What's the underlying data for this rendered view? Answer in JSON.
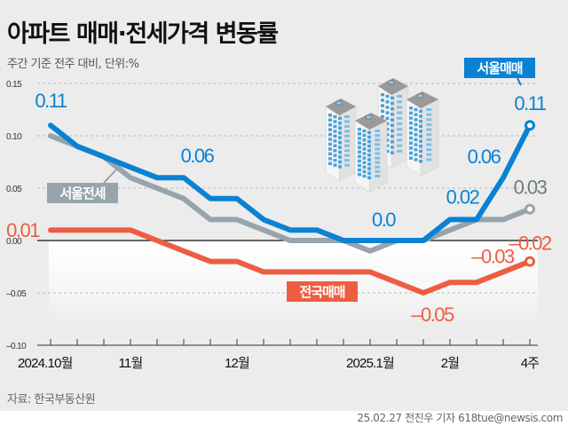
{
  "header": {
    "title": "아파트 매매·전세가격 변동률",
    "subtitle": "주간 기준 전주 대비, 단위:%"
  },
  "footer": {
    "source": "자료: 한국부동산원",
    "byline": "25.02.27 전진우 기자 618tue@newsis.com"
  },
  "colors": {
    "seoul_sale": "#0a82d4",
    "seoul_jeonse": "#97a4ab",
    "national_sale": "#ee5d42",
    "background": "#ececec"
  },
  "chart_data": {
    "type": "line",
    "title": "아파트 매매·전세가격 변동률",
    "subtitle": "주간 기준 전주 대비, 단위:%",
    "xlabel": "",
    "ylabel": "",
    "ylim": [
      -0.1,
      0.15
    ],
    "yticks": [
      0.15,
      0.1,
      0.05,
      0.0,
      -0.05,
      -0.1
    ],
    "ytick_labels": [
      "0.15",
      "0.10",
      "0.05",
      "0.00",
      "-0.05",
      "-0.10"
    ],
    "grid": "dashed horizontal",
    "x_count": 19,
    "x_tick_labels": [
      {
        "index": 0,
        "label": "2024.10월"
      },
      {
        "index": 3,
        "label": "11월"
      },
      {
        "index": 7,
        "label": "12월"
      },
      {
        "index": 12,
        "label": "2025.1월"
      },
      {
        "index": 15,
        "label": "2월"
      },
      {
        "index": 18,
        "label": "4주"
      }
    ],
    "series": [
      {
        "key": "seoul_jeonse",
        "name": "서울전세",
        "values": [
          0.1,
          0.09,
          0.08,
          0.06,
          0.05,
          0.04,
          0.02,
          0.02,
          0.01,
          0.0,
          0.0,
          0.0,
          -0.01,
          0.0,
          0.0,
          0.01,
          0.02,
          0.02,
          0.03
        ],
        "annotations": [
          {
            "index": 18,
            "text": "0.03"
          }
        ]
      },
      {
        "key": "national_sale",
        "name": "전국매매",
        "values": [
          0.01,
          0.01,
          0.01,
          0.01,
          0.0,
          -0.01,
          -0.02,
          -0.02,
          -0.03,
          -0.03,
          -0.03,
          -0.03,
          -0.03,
          -0.04,
          -0.05,
          -0.04,
          -0.04,
          -0.03,
          -0.02
        ],
        "annotations": [
          {
            "index": 0,
            "text": "0.01"
          },
          {
            "index": 14,
            "text": "-0.05"
          },
          {
            "index": 17,
            "text": "-0.03"
          },
          {
            "index": 18,
            "text": "-0.02"
          }
        ]
      },
      {
        "key": "seoul_sale",
        "name": "서울매매",
        "values": [
          0.11,
          0.09,
          0.08,
          0.07,
          0.06,
          0.06,
          0.04,
          0.04,
          0.02,
          0.01,
          0.01,
          0.0,
          0.0,
          0.0,
          0.0,
          0.02,
          0.02,
          0.06,
          0.11
        ],
        "annotations": [
          {
            "index": 0,
            "text": "0.11"
          },
          {
            "index": 5,
            "text": "0.06"
          },
          {
            "index": 12,
            "text": "0.0"
          },
          {
            "index": 16,
            "text": "0.02"
          },
          {
            "index": 17,
            "text": "0.06"
          },
          {
            "index": 18,
            "text": "0.11"
          }
        ]
      }
    ],
    "legend": [
      {
        "series": "seoul_sale",
        "label": "서울매매",
        "placement": "top-right"
      },
      {
        "series": "seoul_jeonse",
        "label": "서울전세",
        "placement": "left"
      },
      {
        "series": "national_sale",
        "label": "전국매매",
        "placement": "bottom-center"
      }
    ],
    "illustration": "apartment-buildings"
  }
}
